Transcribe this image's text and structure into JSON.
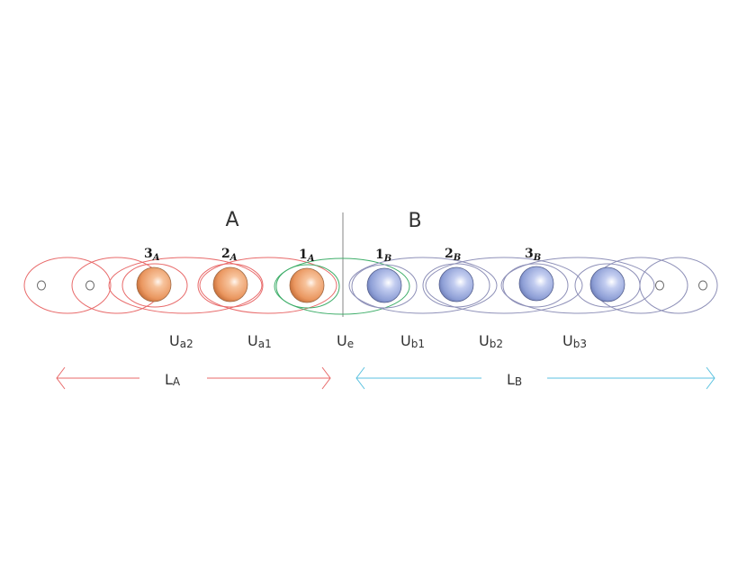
{
  "regions": {
    "a": {
      "main": "A"
    },
    "b": {
      "main": "B"
    }
  },
  "sites": {
    "a3": {
      "main": "3",
      "sub": "A"
    },
    "a2": {
      "main": "2",
      "sub": "A"
    },
    "a1": {
      "main": "1",
      "sub": "A"
    },
    "b1": {
      "main": "1",
      "sub": "B"
    },
    "b2": {
      "main": "2",
      "sub": "B"
    },
    "b3": {
      "main": "3",
      "sub": "B"
    }
  },
  "couplings": {
    "ua2": {
      "main": "U",
      "sub": "a2"
    },
    "ua1": {
      "main": "U",
      "sub": "a1"
    },
    "ue": {
      "main": "U",
      "sub": "e"
    },
    "ub1": {
      "main": "U",
      "sub": "b1"
    },
    "ub2": {
      "main": "U",
      "sub": "b2"
    },
    "ub3": {
      "main": "U",
      "sub": "b3"
    }
  },
  "lengths": {
    "la": {
      "main": "L",
      "sub": "A"
    },
    "lb": {
      "main": "L",
      "sub": "B"
    }
  },
  "colors": {
    "region_a": "#e86a6a",
    "region_b": "#5bc2e0",
    "bridge": "#3fae6a",
    "chain_b": "#8e90b8",
    "divider": "#9a9a9a"
  }
}
